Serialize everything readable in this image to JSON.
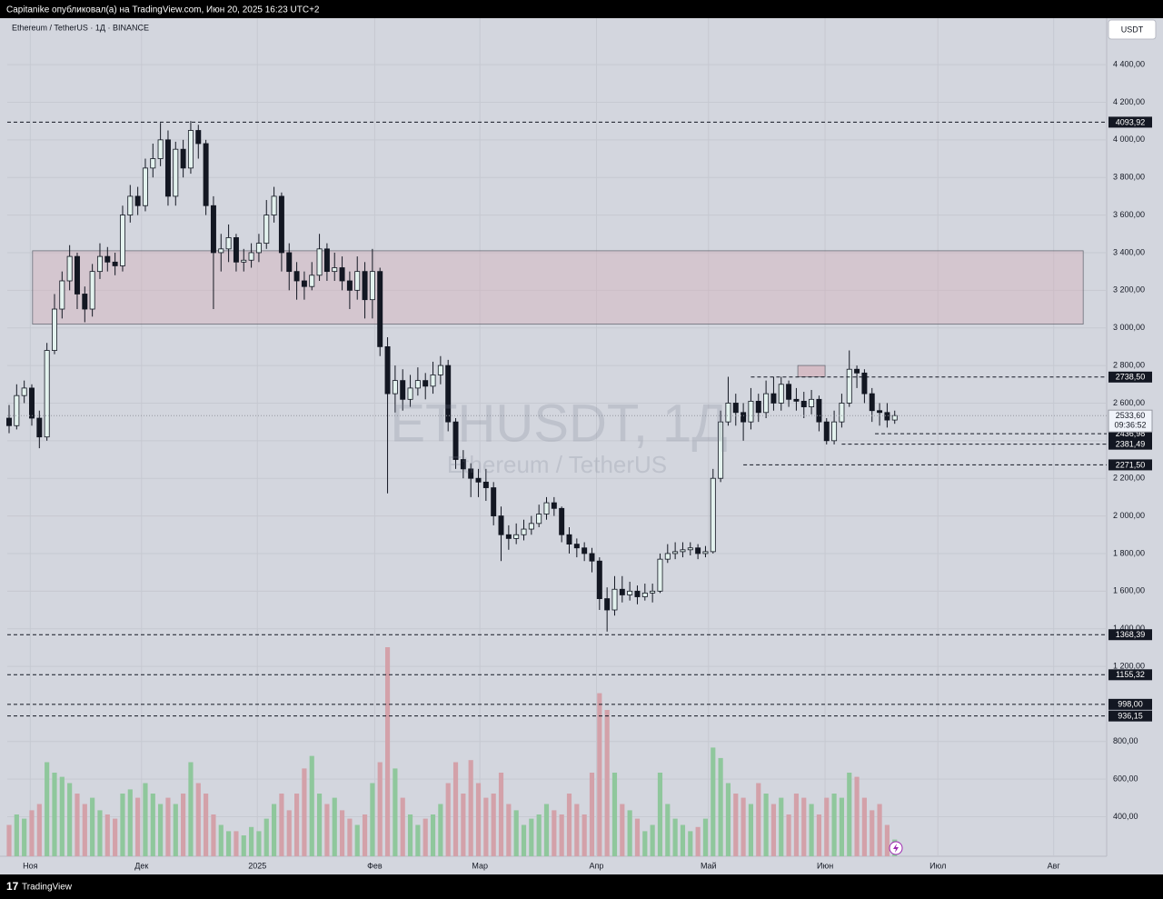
{
  "header": {
    "text": "Capitanike опубликовал(а) на TradingView.com, Июн 20, 2025 16:23 UTC+2"
  },
  "footer": {
    "brand": "TradingView"
  },
  "chart_data": {
    "type": "candlestick",
    "symbol_legend": "Ethereum / TetherUS · 1Д · BINANCE",
    "watermark": "ETHUSDT, 1Д",
    "watermark_subtitle": "Ethereum / TetherUS",
    "currency_button": "USDT",
    "open": [
      2520,
      2480,
      2640,
      2680,
      2520,
      2420,
      2880,
      3100,
      3250,
      3380,
      3180,
      3100,
      3300,
      3380,
      3350,
      3330,
      3600,
      3700,
      3650,
      3850,
      3900,
      4000,
      3700,
      3950,
      3850,
      4050,
      3980,
      3650,
      3400,
      3420,
      3480,
      3350,
      3360,
      3400,
      3450,
      3600,
      3700,
      3400,
      3300,
      3250,
      3220,
      3280,
      3420,
      3300,
      3320,
      3250,
      3200,
      3300,
      3150,
      3300,
      2900,
      2650,
      2720,
      2620,
      2680,
      2720,
      2690,
      2750,
      2800,
      2500,
      2300,
      2250,
      2200,
      2180,
      2150,
      2000,
      1900,
      1880,
      1900,
      1930,
      1960,
      2010,
      2070,
      2040,
      1900,
      1850,
      1830,
      1800,
      1760,
      1560,
      1500,
      1610,
      1580,
      1600,
      1570,
      1590,
      1600,
      1770,
      1800,
      1810,
      1820,
      1830,
      1800,
      1810,
      2200,
      2500,
      2600,
      2550,
      2500,
      2610,
      2550,
      2650,
      2600,
      2700,
      2620,
      2610,
      2580,
      2620,
      2500,
      2400,
      2500,
      2600,
      2780,
      2760,
      2650,
      2560,
      2550,
      2510
    ],
    "high": [
      2590,
      2700,
      2720,
      2700,
      2560,
      2920,
      3180,
      3300,
      3440,
      3400,
      3220,
      3340,
      3450,
      3430,
      3400,
      3650,
      3760,
      3750,
      3900,
      3980,
      4090,
      4050,
      3990,
      4000,
      4100,
      4080,
      4000,
      3700,
      3500,
      3550,
      3500,
      3420,
      3450,
      3500,
      3680,
      3750,
      3720,
      3450,
      3350,
      3300,
      3350,
      3500,
      3450,
      3400,
      3380,
      3300,
      3380,
      3350,
      3420,
      3320,
      2950,
      2800,
      2780,
      2750,
      2790,
      2760,
      2820,
      2850,
      2830,
      2520,
      2350,
      2280,
      2250,
      2250,
      2180,
      2050,
      1950,
      1960,
      1980,
      2000,
      2060,
      2100,
      2100,
      2050,
      1940,
      1880,
      1860,
      1830,
      1780,
      1620,
      1680,
      1680,
      1650,
      1630,
      1640,
      1640,
      1800,
      1850,
      1860,
      1860,
      1860,
      1850,
      1840,
      2250,
      2560,
      2740,
      2650,
      2600,
      2680,
      2650,
      2720,
      2740,
      2740,
      2720,
      2680,
      2660,
      2670,
      2640,
      2520,
      2560,
      2650,
      2880,
      2800,
      2780,
      2680,
      2600,
      2600,
      2560
    ],
    "low": [
      2440,
      2460,
      2600,
      2480,
      2360,
      2400,
      2860,
      3050,
      3200,
      3100,
      3030,
      3060,
      3260,
      3300,
      3280,
      3300,
      3560,
      3600,
      3620,
      3800,
      3860,
      3650,
      3650,
      3800,
      3820,
      3900,
      3600,
      3100,
      3300,
      3350,
      3300,
      3300,
      3320,
      3350,
      3420,
      3560,
      3300,
      3200,
      3150,
      3150,
      3200,
      3250,
      3250,
      3250,
      3200,
      3100,
      3150,
      3050,
      3050,
      2850,
      2120,
      2550,
      2560,
      2580,
      2640,
      2620,
      2650,
      2700,
      2450,
      2250,
      2200,
      2100,
      2100,
      2080,
      1950,
      1760,
      1820,
      1850,
      1870,
      1900,
      1940,
      1980,
      2000,
      1860,
      1800,
      1780,
      1760,
      1700,
      1500,
      1385,
      1470,
      1540,
      1550,
      1530,
      1550,
      1540,
      1590,
      1750,
      1770,
      1780,
      1790,
      1770,
      1780,
      1800,
      2180,
      2480,
      2480,
      2400,
      2460,
      2500,
      2520,
      2560,
      2560,
      2580,
      2560,
      2520,
      2540,
      2450,
      2380,
      2380,
      2470,
      2580,
      2680,
      2600,
      2500,
      2480,
      2470,
      2490
    ],
    "close": [
      2480,
      2640,
      2680,
      2520,
      2420,
      2880,
      3100,
      3250,
      3380,
      3180,
      3100,
      3300,
      3380,
      3350,
      3330,
      3600,
      3700,
      3650,
      3850,
      3900,
      4000,
      3700,
      3950,
      3850,
      4050,
      3980,
      3650,
      3400,
      3420,
      3480,
      3350,
      3360,
      3400,
      3450,
      3600,
      3700,
      3400,
      3300,
      3250,
      3220,
      3280,
      3420,
      3300,
      3320,
      3250,
      3200,
      3300,
      3150,
      3300,
      2900,
      2650,
      2720,
      2620,
      2680,
      2720,
      2690,
      2750,
      2800,
      2500,
      2300,
      2250,
      2200,
      2180,
      2150,
      2000,
      1900,
      1880,
      1900,
      1930,
      1960,
      2010,
      2070,
      2040,
      1900,
      1850,
      1830,
      1800,
      1760,
      1560,
      1500,
      1610,
      1580,
      1600,
      1570,
      1590,
      1600,
      1770,
      1800,
      1810,
      1820,
      1830,
      1800,
      1810,
      2200,
      2500,
      2600,
      2550,
      2500,
      2610,
      2550,
      2650,
      2600,
      2700,
      2620,
      2610,
      2580,
      2620,
      2500,
      2400,
      2500,
      2600,
      2780,
      2760,
      2650,
      2560,
      2550,
      2510,
      2533.6
    ],
    "volume": [
      15,
      20,
      18,
      22,
      25,
      45,
      40,
      38,
      35,
      30,
      25,
      28,
      22,
      20,
      18,
      30,
      32,
      28,
      35,
      30,
      25,
      28,
      25,
      30,
      45,
      35,
      30,
      20,
      15,
      12,
      12,
      10,
      14,
      12,
      18,
      25,
      30,
      22,
      30,
      42,
      48,
      30,
      25,
      28,
      22,
      18,
      15,
      20,
      35,
      45,
      100,
      42,
      28,
      20,
      15,
      18,
      20,
      25,
      35,
      45,
      30,
      46,
      35,
      28,
      30,
      40,
      25,
      22,
      15,
      18,
      20,
      25,
      22,
      20,
      30,
      25,
      20,
      40,
      78,
      70,
      40,
      25,
      22,
      18,
      12,
      15,
      40,
      25,
      18,
      15,
      12,
      14,
      18,
      52,
      47,
      35,
      30,
      28,
      25,
      35,
      30,
      25,
      28,
      20,
      30,
      28,
      25,
      20,
      28,
      30,
      28,
      40,
      38,
      28,
      22,
      25,
      15,
      8
    ],
    "volume_lim": [
      0,
      100
    ],
    "up_color": "#e3f2ee",
    "down_color": "#131722",
    "volume_up_color": "#8fc79c",
    "volume_down_color": "#d3a1a9",
    "xlim": [
      -0.24,
      145
    ],
    "xticks": [
      {
        "value": 2.8,
        "label": "Ноя"
      },
      {
        "value": 17.5,
        "label": "Дек"
      },
      {
        "value": 32.8,
        "label": "2025"
      },
      {
        "value": 48.3,
        "label": "Фев"
      },
      {
        "value": 62.2,
        "label": "Мар"
      },
      {
        "value": 77.6,
        "label": "Апр"
      },
      {
        "value": 92.4,
        "label": "Май"
      },
      {
        "value": 107.8,
        "label": "Июн"
      },
      {
        "value": 122.7,
        "label": "Июл"
      },
      {
        "value": 138,
        "label": "Авг"
      }
    ],
    "ylim": [
      190,
      4647
    ],
    "yticks": [
      {
        "value": 400,
        "label": "400,00"
      },
      {
        "value": 600,
        "label": "600,00"
      },
      {
        "value": 800,
        "label": "800,00"
      },
      {
        "value": 1200,
        "label": "1 200,00"
      },
      {
        "value": 1400,
        "label": "1 400,00"
      },
      {
        "value": 1600,
        "label": "1 600,00"
      },
      {
        "value": 1800,
        "label": "1 800,00"
      },
      {
        "value": 2000,
        "label": "2 000,00"
      },
      {
        "value": 2200,
        "label": "2 200,00"
      },
      {
        "value": 2400,
        "label": "2 400,00"
      },
      {
        "value": 2600,
        "label": "2 600,00"
      },
      {
        "value": 2800,
        "label": "2 800,00"
      },
      {
        "value": 3000,
        "label": "3 000,00"
      },
      {
        "value": 3200,
        "label": "3 200,00"
      },
      {
        "value": 3400,
        "label": "3 400,00"
      },
      {
        "value": 3600,
        "label": "3 600,00"
      },
      {
        "value": 3800,
        "label": "3 800,00"
      },
      {
        "value": 4000,
        "label": "4 000,00"
      },
      {
        "value": 4200,
        "label": "4 200,00"
      },
      {
        "value": 4400,
        "label": "4 400,00"
      }
    ],
    "grid": true,
    "levels": [
      {
        "value": 4093.92,
        "label": "4093,92"
      },
      {
        "value": 2738.5,
        "label": "2738,50",
        "x_start": 98
      },
      {
        "value": 2436.98,
        "label": "2436,98",
        "x_start": 114.4
      },
      {
        "value": 2381.49,
        "label": "2381,49",
        "x_start": 110
      },
      {
        "value": 2271.5,
        "label": "2271,50",
        "x_start": 97
      },
      {
        "value": 1368.39,
        "label": "1368,39"
      },
      {
        "value": 1155.32,
        "label": "1155,32"
      },
      {
        "value": 998,
        "label": "998,00"
      },
      {
        "value": 936.15,
        "label": "936,15"
      }
    ],
    "zones": [
      {
        "y": [
          3020,
          3410
        ],
        "x": [
          3.1,
          141.9
        ],
        "color": "rgba(214,170,180,0.35)"
      },
      {
        "y": [
          2740,
          2800
        ],
        "x": [
          104.2,
          107.8
        ],
        "color": "rgba(214,170,180,0.6)"
      }
    ],
    "current_price": {
      "value": 2533.6,
      "label": "2533,60",
      "countdown": "09:36:52"
    }
  }
}
